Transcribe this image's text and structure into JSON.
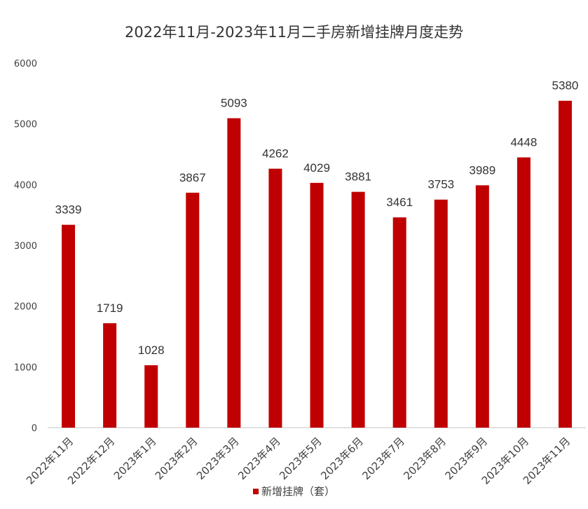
{
  "chart_data": {
    "type": "bar",
    "title": "2022年11月-2023年11月二手房新增挂牌月度走势",
    "xlabel": "",
    "ylabel": "",
    "categories": [
      "2022年11月",
      "2022年12月",
      "2023年1月",
      "2023年2月",
      "2023年3月",
      "2023年4月",
      "2023年5月",
      "2023年6月",
      "2023年7月",
      "2023年8月",
      "2023年9月",
      "2023年10月",
      "2023年11月"
    ],
    "series": [
      {
        "name": "新增挂牌（套）",
        "values": [
          3339,
          1719,
          1028,
          3867,
          5093,
          4262,
          4029,
          3881,
          3461,
          3753,
          3989,
          4448,
          5380
        ]
      }
    ],
    "ylim": [
      0,
      6000
    ],
    "yticks": [
      "0",
      "1000",
      "2000",
      "3000",
      "4000",
      "5000",
      "6000"
    ],
    "grid": false,
    "legend_position": "bottom",
    "bar_color": "#C00000"
  }
}
